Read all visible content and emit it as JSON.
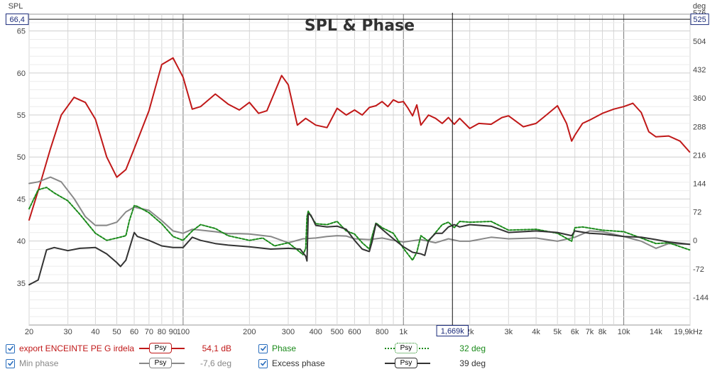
{
  "chart_data": {
    "type": "line",
    "title": "SPL & Phase",
    "ylabel_left": "SPL",
    "ylabel_right": "deg",
    "x_scale": "log",
    "xlim": [
      20,
      20000
    ],
    "ylim_left": [
      30,
      67
    ],
    "ylim_right": [
      -214,
      572
    ],
    "x_tick_labels": [
      "20",
      "30",
      "40",
      "50",
      "60",
      "70",
      "80",
      "90",
      "100",
      "200",
      "300",
      "400",
      "500",
      "600",
      "800",
      "1k",
      "2k",
      "3k",
      "4k",
      "5k",
      "6k",
      "7k",
      "8k",
      "10k",
      "14k",
      "19,9kHz"
    ],
    "x_tick_values": [
      20,
      30,
      40,
      50,
      60,
      70,
      80,
      90,
      100,
      200,
      300,
      400,
      500,
      600,
      800,
      1000,
      2000,
      3000,
      4000,
      5000,
      6000,
      7000,
      8000,
      10000,
      14000,
      19900
    ],
    "left_ticks": [
      "35",
      "40",
      "45",
      "50",
      "55",
      "60",
      "65"
    ],
    "left_tick_values": [
      35,
      40,
      45,
      50,
      55,
      60,
      65
    ],
    "right_ticks": [
      "-144",
      "-72",
      "0",
      "72",
      "144",
      "216",
      "288",
      "360",
      "432",
      "504",
      "576"
    ],
    "right_tick_values": [
      -144,
      -72,
      0,
      72,
      144,
      216,
      288,
      360,
      432,
      504,
      576
    ],
    "cursor": {
      "x_label": "1,669k",
      "x_value": 1669,
      "y_left_label": "66,4",
      "y_left_value": 66.4,
      "y_right_label": "525"
    },
    "grid": true,
    "series": [
      {
        "name": "export ENCEINTE PE G irdela",
        "axis": "left",
        "color": "#c01818",
        "dash": "",
        "x": [
          20,
          22,
          25,
          28,
          32,
          36,
          40,
          45,
          50,
          55,
          60,
          70,
          80,
          90,
          100,
          110,
          120,
          140,
          160,
          180,
          200,
          220,
          240,
          280,
          300,
          330,
          360,
          400,
          450,
          500,
          550,
          600,
          650,
          700,
          750,
          800,
          850,
          900,
          950,
          1000,
          1050,
          1100,
          1150,
          1200,
          1300,
          1400,
          1500,
          1600,
          1700,
          1800,
          2000,
          2200,
          2500,
          2800,
          3000,
          3500,
          4000,
          4500,
          5000,
          5500,
          5800,
          6000,
          6500,
          7000,
          8000,
          9000,
          10000,
          11000,
          12000,
          13000,
          14000,
          16000,
          18000,
          19900
        ],
        "y": [
          42.5,
          46,
          51,
          55,
          57.1,
          56.5,
          54.5,
          50,
          47.6,
          48.5,
          51,
          55.5,
          61,
          61.8,
          59.5,
          55.7,
          56,
          57.5,
          56.3,
          55.6,
          56.5,
          55.2,
          55.5,
          59.7,
          58.6,
          53.8,
          54.6,
          53.8,
          53.5,
          55.8,
          55,
          55.6,
          55,
          55.9,
          56.1,
          56.6,
          56,
          56.8,
          56.5,
          56.6,
          55.8,
          54.9,
          56.2,
          53.8,
          55.0,
          54.6,
          54.0,
          54.7,
          53.9,
          54.6,
          53.4,
          54.0,
          53.9,
          54.7,
          54.9,
          53.6,
          54.0,
          55.1,
          56.1,
          54,
          51.9,
          52.6,
          54.0,
          54.4,
          55.2,
          55.7,
          56.0,
          56.4,
          55.3,
          53.0,
          52.4,
          52.5,
          51.9,
          50.6
        ]
      },
      {
        "name": "Min phase",
        "axis": "right",
        "color": "#888888",
        "dash": "",
        "x": [
          20,
          22,
          25,
          28,
          32,
          36,
          40,
          45,
          50,
          55,
          60,
          70,
          80,
          90,
          100,
          110,
          120,
          140,
          160,
          180,
          200,
          250,
          300,
          350,
          400,
          450,
          500,
          550,
          600,
          700,
          800,
          900,
          1000,
          1200,
          1400,
          1600,
          1800,
          2000,
          2500,
          3000,
          4000,
          5000,
          6000,
          7000,
          8000,
          10000,
          12000,
          14000,
          16000,
          19900
        ],
        "y": [
          144,
          148,
          160,
          148,
          106,
          60,
          38,
          38,
          46,
          72,
          84,
          76,
          50,
          24,
          18,
          28,
          26,
          22,
          17,
          17,
          16,
          10,
          -6,
          4,
          6,
          10,
          12,
          11,
          4,
          2,
          6,
          0,
          -4,
          2,
          -6,
          4,
          -2,
          -2,
          8,
          4,
          6,
          -2,
          8,
          24,
          22,
          10,
          -2,
          -20,
          -8,
          -10
        ]
      },
      {
        "name": "Phase",
        "axis": "right",
        "color": "#1a8a1a",
        "dash": "3 2",
        "x": [
          20,
          22,
          24,
          26,
          30,
          34,
          40,
          45,
          50,
          55,
          57,
          60,
          62,
          70,
          80,
          90,
          100,
          110,
          120,
          140,
          160,
          200,
          230,
          260,
          300,
          330,
          350,
          360,
          365,
          370,
          380,
          400,
          450,
          500,
          550,
          600,
          650,
          700,
          720,
          750,
          800,
          900,
          1000,
          1100,
          1150,
          1200,
          1300,
          1400,
          1500,
          1600,
          1700,
          1800,
          2000,
          2500,
          3000,
          4000,
          5000,
          5800,
          6000,
          6500,
          8000,
          10000,
          12000,
          14000,
          16000,
          19900
        ],
        "y": [
          80,
          128,
          134,
          120,
          100,
          66,
          18,
          0,
          6,
          12,
          50,
          88,
          86,
          70,
          42,
          10,
          0,
          24,
          40,
          30,
          12,
          0,
          6,
          -14,
          -6,
          -24,
          -36,
          -20,
          60,
          74,
          62,
          42,
          40,
          48,
          24,
          16,
          -6,
          -22,
          10,
          44,
          32,
          18,
          -20,
          -50,
          -30,
          12,
          -2,
          20,
          40,
          46,
          32,
          48,
          46,
          48,
          26,
          28,
          18,
          -2,
          32,
          34,
          26,
          22,
          6,
          -8,
          -6,
          -24
        ]
      },
      {
        "name": "Excess phase",
        "axis": "right",
        "color": "#333333",
        "dash": "",
        "x": [
          20,
          22,
          24,
          26,
          30,
          34,
          40,
          45,
          50,
          52,
          55,
          60,
          62,
          70,
          80,
          90,
          100,
          110,
          120,
          140,
          160,
          200,
          250,
          300,
          340,
          360,
          365,
          370,
          380,
          400,
          450,
          500,
          550,
          600,
          650,
          700,
          720,
          750,
          800,
          900,
          1000,
          1100,
          1200,
          1250,
          1300,
          1400,
          1500,
          1600,
          1700,
          1800,
          2000,
          2500,
          3000,
          4000,
          5000,
          5800,
          6000,
          7000,
          8000,
          10000,
          12000,
          14000,
          16000,
          19900
        ],
        "y": [
          -112,
          -100,
          -24,
          -18,
          -26,
          -20,
          -18,
          -34,
          -56,
          -66,
          -50,
          20,
          10,
          0,
          -14,
          -18,
          -18,
          8,
          0,
          -8,
          -12,
          -16,
          -22,
          -20,
          -22,
          -40,
          -52,
          68,
          64,
          38,
          34,
          36,
          28,
          0,
          -22,
          -28,
          -4,
          42,
          28,
          4,
          -16,
          -30,
          -34,
          -38,
          0,
          18,
          18,
          34,
          40,
          34,
          40,
          36,
          20,
          24,
          20,
          12,
          24,
          18,
          16,
          10,
          8,
          2,
          -4,
          -10
        ]
      }
    ]
  },
  "legend": {
    "items": [
      {
        "label": "export ENCEINTE PE G irdela",
        "value": "54,1 dB",
        "checked": true,
        "color": "#c01818",
        "value_color": "#c01818",
        "button": "Psy",
        "line_style": "solid"
      },
      {
        "label": "Min phase",
        "value": "-7,6 deg",
        "checked": true,
        "color": "#888888",
        "value_color": "#888888",
        "button": "Psy",
        "line_style": "solid"
      },
      {
        "label": "Phase",
        "value": "32 deg",
        "checked": true,
        "color": "#1a8a1a",
        "value_color": "#1a8a1a",
        "button": "Psy",
        "line_style": "dotted"
      },
      {
        "label": "Excess phase",
        "value": "39 deg",
        "checked": true,
        "color": "#333333",
        "value_color": "#333333",
        "button": "Psy",
        "line_style": "solid"
      }
    ]
  }
}
